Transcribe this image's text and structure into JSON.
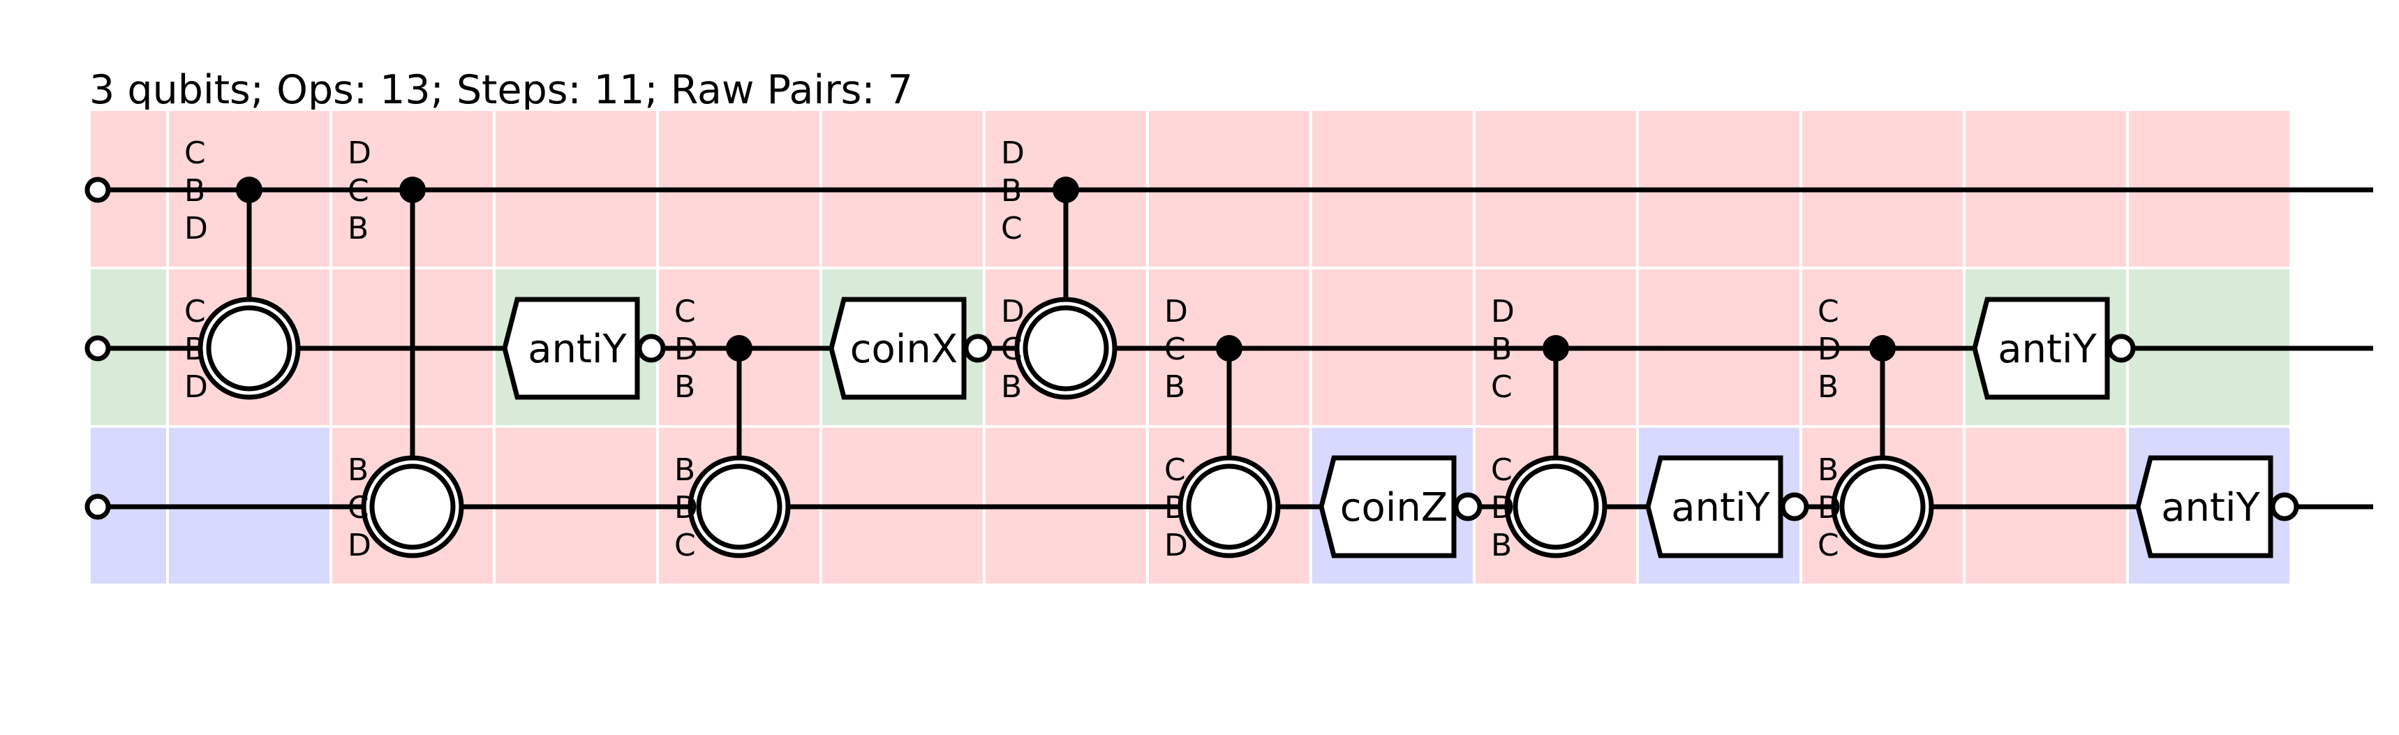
{
  "header": {
    "title": "3 qubits; Ops: 13; Steps: 11; Raw Pairs: 7"
  },
  "colors": {
    "red_cell": "#ffd7d9",
    "green_cell": "#d8ead8",
    "blue_cell": "#d8d9fe",
    "wire": "#000000",
    "gate_fill": "#ffffff"
  },
  "circuit": {
    "qubits": 3,
    "cells": [
      [
        "red",
        "green",
        "blue"
      ],
      [
        "red",
        "red",
        "blue"
      ],
      [
        "red",
        "red",
        "red"
      ],
      [
        "red",
        "green",
        "red"
      ],
      [
        "red",
        "red",
        "red"
      ],
      [
        "red",
        "green",
        "red"
      ],
      [
        "red",
        "red",
        "red"
      ],
      [
        "red",
        "red",
        "red"
      ],
      [
        "red",
        "red",
        "blue"
      ],
      [
        "red",
        "red",
        "red"
      ],
      [
        "red",
        "red",
        "blue"
      ],
      [
        "red",
        "red",
        "red"
      ],
      [
        "red",
        "green",
        "red"
      ],
      [
        "red",
        "green",
        "blue"
      ]
    ],
    "ops": [
      {
        "type": "cnot",
        "col": 1,
        "control": 0,
        "target": 1
      },
      {
        "type": "cnot",
        "col": 2,
        "control": 0,
        "target": 2
      },
      {
        "type": "gate",
        "col": 3,
        "wire": 1,
        "label": "antiY"
      },
      {
        "type": "cnot",
        "col": 4,
        "control": 1,
        "target": 2
      },
      {
        "type": "gate",
        "col": 5,
        "wire": 1,
        "label": "coinX"
      },
      {
        "type": "cnot",
        "col": 6,
        "control": 0,
        "target": 1
      },
      {
        "type": "cnot",
        "col": 7,
        "control": 1,
        "target": 2
      },
      {
        "type": "gate",
        "col": 8,
        "wire": 2,
        "label": "coinZ"
      },
      {
        "type": "cnot",
        "col": 9,
        "control": 1,
        "target": 2
      },
      {
        "type": "gate",
        "col": 10,
        "wire": 2,
        "label": "antiY"
      },
      {
        "type": "cnot",
        "col": 11,
        "control": 1,
        "target": 2
      },
      {
        "type": "gate",
        "col": 12,
        "wire": 1,
        "label": "antiY"
      },
      {
        "type": "gate",
        "col": 13,
        "wire": 2,
        "label": "antiY"
      }
    ],
    "annotations": [
      {
        "col": 1,
        "wire": 0,
        "letters": [
          "C",
          "B",
          "D"
        ]
      },
      {
        "col": 1,
        "wire": 1,
        "letters": [
          "C",
          "B",
          "D"
        ]
      },
      {
        "col": 2,
        "wire": 0,
        "letters": [
          "D",
          "C",
          "B"
        ]
      },
      {
        "col": 2,
        "wire": 2,
        "letters": [
          "B",
          "C",
          "D"
        ]
      },
      {
        "col": 4,
        "wire": 1,
        "letters": [
          "C",
          "D",
          "B"
        ]
      },
      {
        "col": 4,
        "wire": 2,
        "letters": [
          "B",
          "D",
          "C"
        ]
      },
      {
        "col": 6,
        "wire": 0,
        "letters": [
          "D",
          "B",
          "C"
        ]
      },
      {
        "col": 6,
        "wire": 1,
        "letters": [
          "D",
          "C",
          "B"
        ]
      },
      {
        "col": 7,
        "wire": 1,
        "letters": [
          "D",
          "C",
          "B"
        ]
      },
      {
        "col": 7,
        "wire": 2,
        "letters": [
          "C",
          "B",
          "D"
        ]
      },
      {
        "col": 9,
        "wire": 1,
        "letters": [
          "D",
          "B",
          "C"
        ]
      },
      {
        "col": 9,
        "wire": 2,
        "letters": [
          "C",
          "D",
          "B"
        ]
      },
      {
        "col": 11,
        "wire": 1,
        "letters": [
          "C",
          "D",
          "B"
        ]
      },
      {
        "col": 11,
        "wire": 2,
        "letters": [
          "B",
          "D",
          "C"
        ]
      }
    ]
  }
}
